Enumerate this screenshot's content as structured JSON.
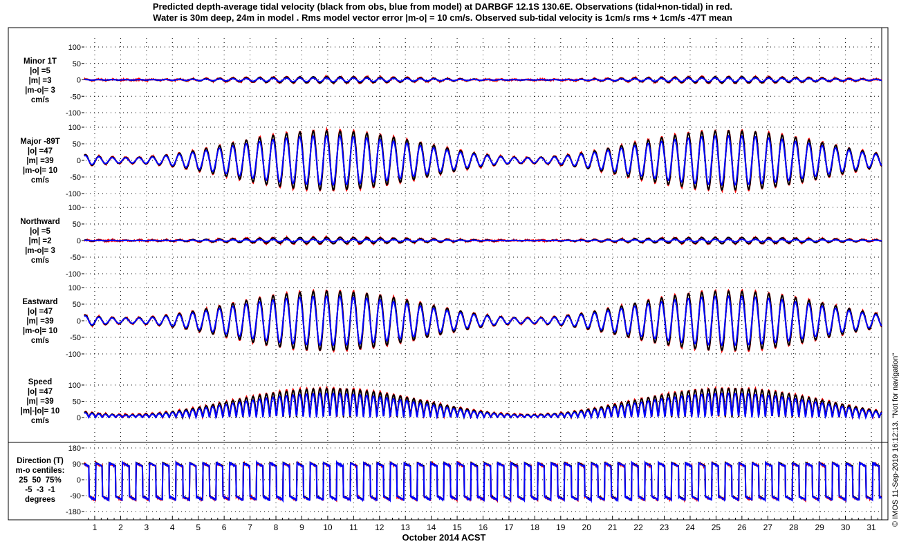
{
  "title": {
    "line1": "Predicted depth-average tidal velocity (black from obs, blue from model) at DARBGF 12.1S 130.6E. Observations (tidal+non-tidal) in red.",
    "line2": "Water is 30m deep, 24m in model . Rms model vector error |m-o| = 10 cm/s. Observed sub-tidal velocity is 1cm/s rms + 1cm/s -47T mean"
  },
  "xaxis_label": "October 2014 ACST",
  "credit": "© IMOS 11-Sep-2019 16:12:13. \"Not for navigation\"",
  "colors": {
    "obs": "#000000",
    "model": "#0000ff",
    "observed_total": "#ff0000"
  },
  "chart_data": {
    "type": "line",
    "x_ticks": [
      "1",
      "2",
      "3",
      "4",
      "5",
      "6",
      "7",
      "8",
      "9",
      "10",
      "11",
      "12",
      "13",
      "14",
      "15",
      "16",
      "17",
      "18",
      "19",
      "20",
      "21",
      "22",
      "23",
      "24",
      "25",
      "26",
      "27",
      "28",
      "29",
      "30",
      "31"
    ],
    "xlim": [
      0.6,
      31.4
    ],
    "grid": true,
    "series_names": [
      "obs",
      "model",
      "observed_total"
    ],
    "panels": [
      {
        "id": "minor",
        "label_lines": [
          "Minor 1T",
          "|o| =5",
          "|m| =3",
          "|m-o|= 3",
          "cm/s"
        ],
        "ylim": [
          -100,
          100
        ],
        "yticks": [
          "100",
          "50",
          "0",
          "-50",
          "-100"
        ],
        "amplitude_obs": 5,
        "amplitude_model": 3,
        "envelope": "spring-neap"
      },
      {
        "id": "major",
        "label_lines": [
          "Major -89T",
          "|o| =47",
          "|m| =39",
          "|m-o|= 10",
          "cm/s"
        ],
        "ylim": [
          -100,
          100
        ],
        "yticks": [
          "100",
          "50",
          "0",
          "-50",
          "-100"
        ],
        "amplitude_obs": 47,
        "amplitude_model": 39,
        "envelope": "spring-neap"
      },
      {
        "id": "northward",
        "label_lines": [
          "Northward",
          "|o| =5",
          "|m| =2",
          "|m-o|= 3",
          "cm/s"
        ],
        "ylim": [
          -100,
          100
        ],
        "yticks": [
          "100",
          "50",
          "0",
          "-50",
          "-100"
        ],
        "amplitude_obs": 5,
        "amplitude_model": 2,
        "envelope": "spring-neap"
      },
      {
        "id": "eastward",
        "label_lines": [
          "Eastward",
          "|o| =47",
          "|m| =39",
          "|m-o|= 10",
          "cm/s"
        ],
        "ylim": [
          -100,
          100
        ],
        "yticks": [
          "100",
          "50",
          "0",
          "-50",
          "-100"
        ],
        "amplitude_obs": 47,
        "amplitude_model": 39,
        "envelope": "spring-neap"
      },
      {
        "id": "speed",
        "label_lines": [
          "Speed",
          "|o| =47",
          "|m| =39",
          "|m|-|o|= 10",
          "cm/s"
        ],
        "ylim": [
          0,
          100
        ],
        "yticks": [
          "100",
          "50",
          "0"
        ],
        "amplitude_obs": 47,
        "amplitude_model": 39,
        "envelope": "spring-neap"
      },
      {
        "id": "direction",
        "label_lines": [
          "Direction (T)",
          "m-o centiles:",
          "25  50  75%",
          "-5  -3  -1",
          "degrees"
        ],
        "ylim": [
          -180,
          180
        ],
        "yticks": [
          "180",
          "90",
          "0",
          "-90",
          "-180"
        ],
        "centiles": {
          "p25": -5,
          "p50": -3,
          "p75": -1
        },
        "units": "degrees"
      }
    ]
  }
}
